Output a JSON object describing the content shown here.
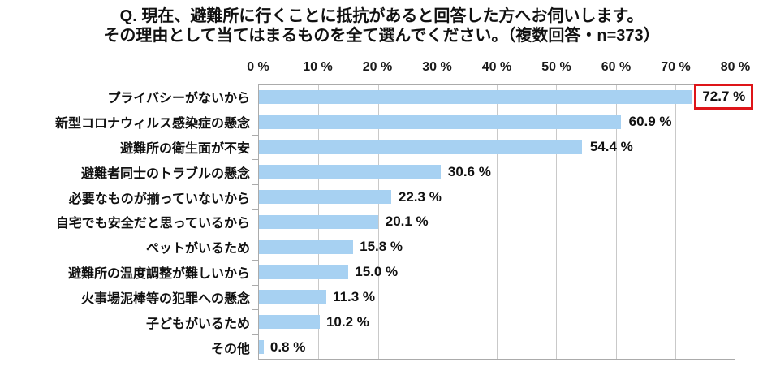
{
  "title": {
    "line1": "Q. 現在、避難所に行くことに抵抗があると回答した方へお伺いします。",
    "line2": "その理由として当てはまるものを全て選んでください。（複数回答・n=373）"
  },
  "chart_data": {
    "type": "bar",
    "orientation": "horizontal",
    "title": "Q. 現在、避難所に行くことに抵抗があると回答した方へお伺いします。 その理由として当てはまるものを全て選んでください。（複数回答・n=373）",
    "n": 373,
    "categories": [
      "プライバシーがないから",
      "新型コロナウィルス感染症の懸念",
      "避難所の衛生面が不安",
      "避難者同士のトラブルの懸念",
      "必要なものが揃っていないから",
      "自宅でも安全だと思っているから",
      "ペットがいるため",
      "避難所の温度調整が難しいから",
      "火事場泥棒等の犯罪への懸念",
      "子どもがいるため",
      "その他"
    ],
    "values": [
      72.7,
      60.9,
      54.4,
      30.6,
      22.3,
      20.1,
      15.8,
      15.0,
      11.3,
      10.2,
      0.8
    ],
    "value_labels": [
      "72.7 %",
      "60.9 %",
      "54.4 %",
      "30.6 %",
      "22.3 %",
      "20.1 %",
      "15.8 %",
      "15.0 %",
      "11.3 %",
      "10.2 %",
      "0.8 %"
    ],
    "highlighted_index": 0,
    "axis": {
      "position": "top",
      "min": 0,
      "max": 80,
      "step": 10,
      "tick_labels": [
        "0 %",
        "10 %",
        "20 %",
        "30 %",
        "40 %",
        "50 %",
        "60 %",
        "70 %",
        "80 %"
      ]
    },
    "grid": true,
    "legend_position": "none",
    "colors": {
      "bar": "#a7d1f2",
      "gridline": "#c9c9c9",
      "plot_border": "#ababab",
      "highlight_box": "#de1519",
      "text": "#111111",
      "background": "#ffffff"
    }
  }
}
